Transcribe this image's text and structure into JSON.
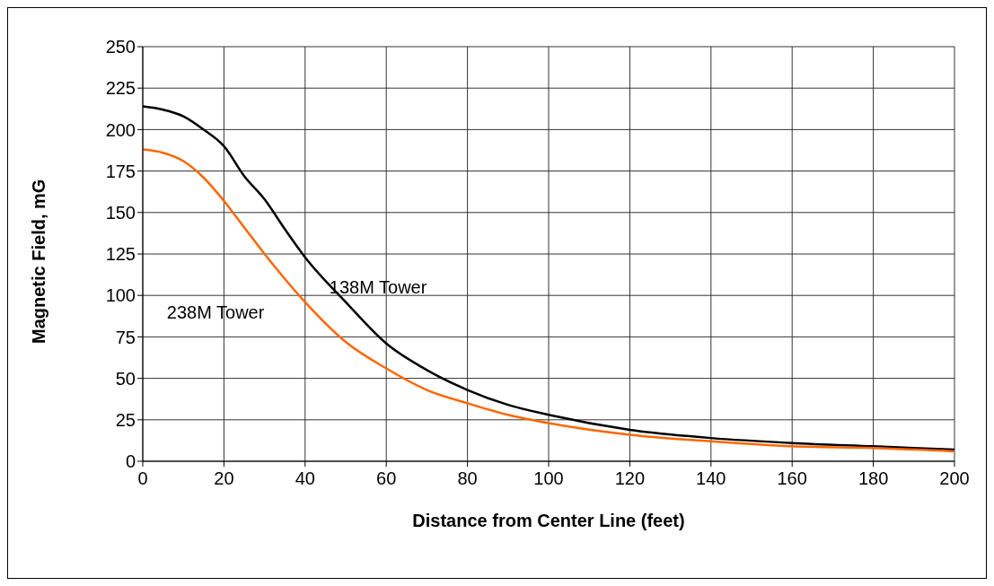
{
  "chart_data": {
    "type": "line",
    "xlabel": "Distance from Center Line (feet)",
    "ylabel": "Magnetic Field, mG",
    "x": [
      0,
      5,
      10,
      15,
      20,
      25,
      30,
      35,
      40,
      50,
      60,
      70,
      80,
      90,
      100,
      120,
      140,
      160,
      180,
      200
    ],
    "series": [
      {
        "name": "138M Tower",
        "color": "#000000",
        "values": [
          214,
          212,
          208,
          200,
          190,
          172,
          158,
          140,
          123,
          96,
          71,
          55,
          43,
          34,
          28,
          19,
          14,
          11,
          9,
          7
        ]
      },
      {
        "name": "238M Tower",
        "color": "#ff6600",
        "values": [
          188,
          186,
          181,
          171,
          157,
          141,
          125,
          110,
          96,
          72,
          56,
          43,
          35,
          28,
          23,
          16,
          12,
          9,
          8,
          6
        ]
      }
    ],
    "xlim": [
      0,
      200
    ],
    "xticks": [
      0,
      20,
      40,
      60,
      80,
      100,
      120,
      140,
      160,
      180,
      200
    ],
    "ylim": [
      0,
      250
    ],
    "yticks": [
      0,
      25,
      50,
      75,
      100,
      125,
      150,
      175,
      200,
      225,
      250
    ],
    "grid": true,
    "legend": false,
    "marker": "none",
    "line_style": "solid"
  }
}
